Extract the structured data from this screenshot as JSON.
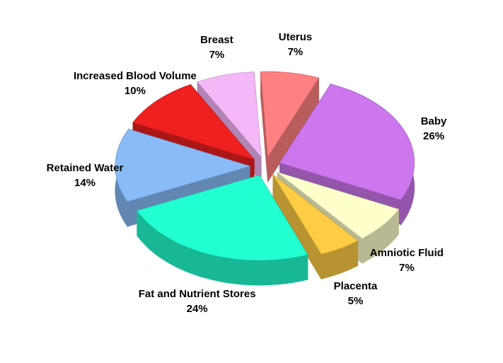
{
  "chart_data": {
    "type": "pie",
    "categories": [
      "Uterus",
      "Baby",
      "Amniotic Fluid",
      "Placenta",
      "Fat and Nutrient Stores",
      "Retained Water",
      "Increased Blood Volume",
      "Breast"
    ],
    "values": [
      7,
      26,
      7,
      5,
      24,
      14,
      10,
      7
    ],
    "value_labels": [
      "7%",
      "26%",
      "7%",
      "5%",
      "24%",
      "14%",
      "10%",
      "7%"
    ],
    "colors": [
      "#ff8080",
      "#cc77ee",
      "#ffffcc",
      "#ffcc44",
      "#22ffd0",
      "#88bbf8",
      "#ee2020",
      "#f4b8f8"
    ]
  }
}
